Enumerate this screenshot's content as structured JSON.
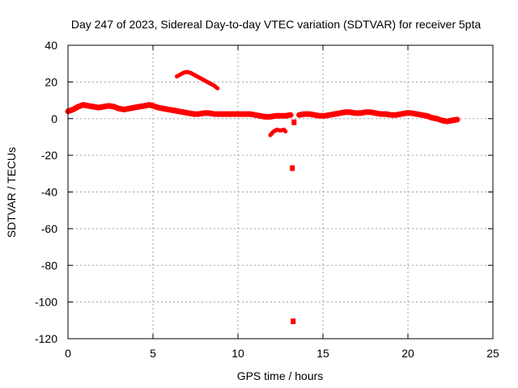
{
  "chart_data": {
    "type": "scatter",
    "title": "Day 247 of 2023, Sidereal Day-to-day VTEC variation (SDTVAR) for receiver 5pta",
    "xlabel": "GPS time / hours",
    "ylabel": "SDTVAR / TECUs",
    "xlim": [
      0,
      25
    ],
    "ylim": [
      -120,
      40
    ],
    "xticks": [
      "0",
      "5",
      "10",
      "15",
      "20",
      "25"
    ],
    "yticks": [
      "40",
      "20",
      "0",
      "-20",
      "-40",
      "-60",
      "-80",
      "-100",
      "-120"
    ],
    "grid": true,
    "series_color": "#ff0000",
    "segments": [
      {
        "name": "main-band",
        "x": [
          0.0,
          0.3,
          0.6,
          0.9,
          1.2,
          1.5,
          1.8,
          2.1,
          2.4,
          2.7,
          3.0,
          3.3,
          3.6,
          3.9,
          4.2,
          4.5,
          4.8,
          5.0,
          5.3,
          5.6,
          5.9,
          6.2,
          6.5,
          6.8,
          7.1,
          7.4,
          7.7,
          8.0,
          8.3,
          8.6,
          8.9,
          9.2,
          9.5,
          9.8,
          10.1,
          10.4,
          10.7,
          11.0,
          11.3,
          11.6,
          11.9,
          12.2,
          12.5,
          12.8,
          13.1
        ],
        "y": [
          4.0,
          5.0,
          6.5,
          7.5,
          7.0,
          6.5,
          6.0,
          6.5,
          7.0,
          6.5,
          5.5,
          5.0,
          5.5,
          6.0,
          6.5,
          7.0,
          7.5,
          7.0,
          6.0,
          5.5,
          5.0,
          4.5,
          4.0,
          3.5,
          3.0,
          2.5,
          2.5,
          3.0,
          3.0,
          2.5,
          2.5,
          2.5,
          2.5,
          2.5,
          2.5,
          2.5,
          2.5,
          2.0,
          1.5,
          1.0,
          1.0,
          1.5,
          1.5,
          1.5,
          2.0
        ]
      },
      {
        "name": "main-band-right",
        "x": [
          13.6,
          13.9,
          14.2,
          14.5,
          14.8,
          15.1,
          15.4,
          15.7,
          16.0,
          16.3,
          16.6,
          16.9,
          17.2,
          17.5,
          17.8,
          18.1,
          18.4,
          18.7,
          19.0,
          19.3,
          19.6,
          19.9,
          20.2,
          20.5,
          20.8,
          21.1,
          21.4,
          21.7,
          22.0,
          22.3,
          22.6,
          22.9
        ],
        "y": [
          2.0,
          2.5,
          2.5,
          2.0,
          1.5,
          1.5,
          2.0,
          2.5,
          3.0,
          3.5,
          3.5,
          3.0,
          3.0,
          3.5,
          3.5,
          3.0,
          2.5,
          2.5,
          2.0,
          2.0,
          2.5,
          3.0,
          3.0,
          2.5,
          2.0,
          1.5,
          0.5,
          0.0,
          -1.0,
          -1.5,
          -1.0,
          -0.5
        ]
      },
      {
        "name": "upper-arc",
        "x": [
          6.4,
          6.6,
          6.8,
          7.0,
          7.2,
          7.4,
          7.6,
          7.8,
          8.0,
          8.2,
          8.4,
          8.6,
          8.8
        ],
        "y": [
          23.0,
          24.0,
          25.0,
          25.5,
          25.0,
          24.0,
          23.0,
          22.0,
          21.0,
          20.0,
          19.0,
          18.0,
          16.5
        ]
      },
      {
        "name": "dip-cluster",
        "x": [
          11.9,
          12.1,
          12.3,
          12.5,
          12.7,
          12.8
        ],
        "y": [
          -9.0,
          -7.0,
          -6.0,
          -6.5,
          -6.0,
          -7.0
        ]
      }
    ],
    "isolated_points": [
      {
        "x": 13.2,
        "y": -27.0
      },
      {
        "x": 13.25,
        "y": -110.5
      },
      {
        "x": 13.3,
        "y": -2.0
      }
    ]
  }
}
